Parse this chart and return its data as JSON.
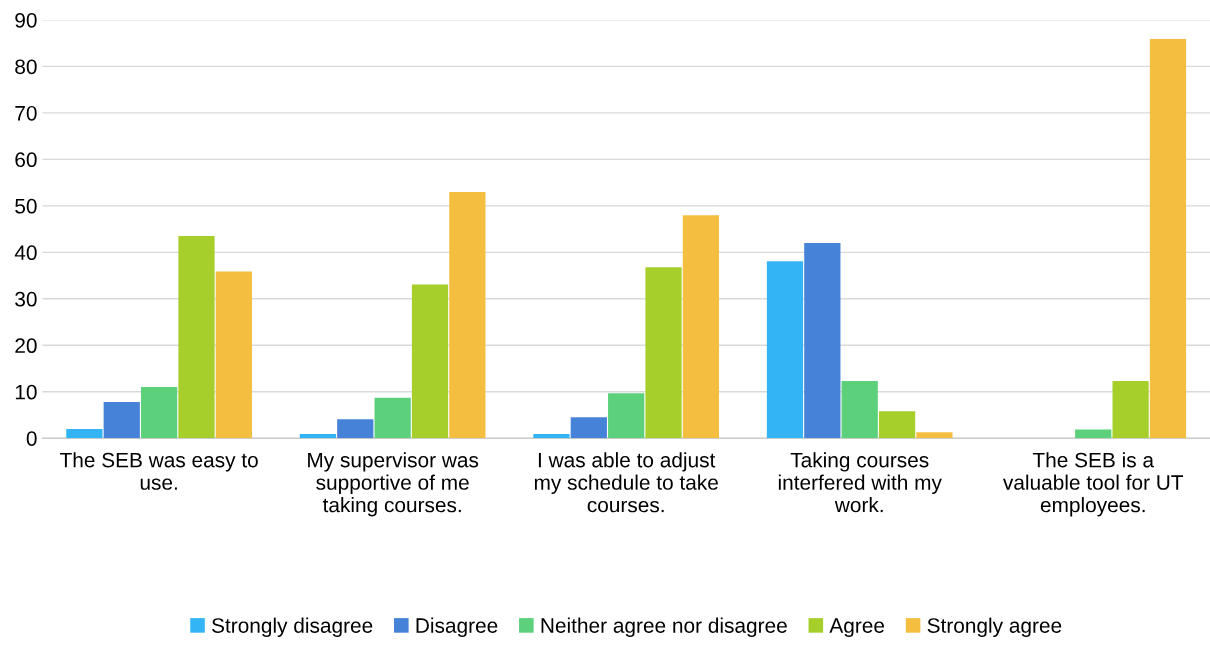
{
  "chart_data": {
    "type": "bar",
    "categories": [
      "The SEB was easy to\nuse.",
      "My supervisor was\nsupportive of me\ntaking courses.",
      "I was able to adjust\nmy schedule to take\ncourses.",
      "Taking courses\ninterfered with my\nwork.",
      "The SEB is a\nvaluable tool for UT\nemployees."
    ],
    "series": [
      {
        "name": "Strongly disagree",
        "color": "#33b5f5",
        "values": [
          2,
          0.9,
          0.9,
          38.1,
          0
        ]
      },
      {
        "name": "Disagree",
        "color": "#4683d8",
        "values": [
          7.8,
          4.1,
          4.5,
          42,
          0
        ]
      },
      {
        "name": "Neither agree nor disagree",
        "color": "#5cd07a",
        "values": [
          11,
          8.7,
          9.7,
          12.3,
          1.9
        ]
      },
      {
        "name": "Agree",
        "color": "#a6cf2c",
        "values": [
          43.5,
          33.1,
          36.8,
          5.8,
          12.3
        ]
      },
      {
        "name": "Strongly agree",
        "color": "#f4be41",
        "values": [
          35.9,
          53,
          48,
          1.3,
          85.9
        ]
      }
    ],
    "ylim": [
      0,
      90
    ],
    "yticks": [
      0,
      10,
      20,
      30,
      40,
      50,
      60,
      70,
      80,
      90
    ],
    "grid": "y",
    "legend": "bottom"
  }
}
